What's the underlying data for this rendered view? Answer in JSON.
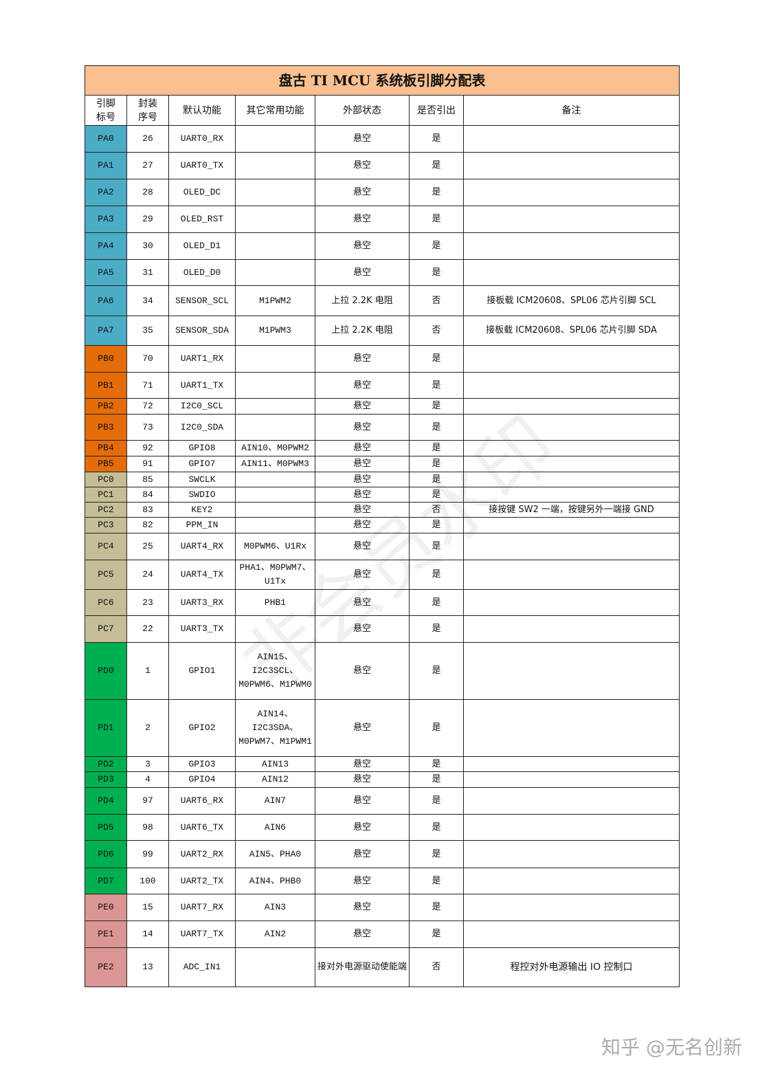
{
  "title": "盘古 TI MCU 系统板引脚分配表",
  "headers": [
    "引脚\n标号",
    "封装\n序号",
    "默认功能",
    "其它常用功能",
    "外部状态",
    "是否引出",
    "备注"
  ],
  "group_colors": {
    "PA": "#4bacc6",
    "PB": "#e46c0a",
    "PC": "#c4bd97",
    "PD": "#00b050",
    "PE": "#da9694"
  },
  "title_color": "#fac090",
  "rows": [
    {
      "pin": "PA0",
      "pkg": "26",
      "default": "UART0_RX",
      "other": "",
      "ext": "悬空",
      "out": "是",
      "note": ""
    },
    {
      "pin": "PA1",
      "pkg": "27",
      "default": "UART0_TX",
      "other": "",
      "ext": "悬空",
      "out": "是",
      "note": ""
    },
    {
      "pin": "PA2",
      "pkg": "28",
      "default": "OLED_DC",
      "other": "",
      "ext": "悬空",
      "out": "是",
      "note": ""
    },
    {
      "pin": "PA3",
      "pkg": "29",
      "default": "OLED_RST",
      "other": "",
      "ext": "悬空",
      "out": "是",
      "note": ""
    },
    {
      "pin": "PA4",
      "pkg": "30",
      "default": "OLED_D1",
      "other": "",
      "ext": "悬空",
      "out": "是",
      "note": ""
    },
    {
      "pin": "PA5",
      "pkg": "31",
      "default": "OLED_D0",
      "other": "",
      "ext": "悬空",
      "out": "是",
      "note": ""
    },
    {
      "pin": "PA6",
      "pkg": "34",
      "default": "SENSOR_SCL",
      "other": "M1PWM2",
      "ext": "上拉 2.2K 电阻",
      "out": "否",
      "note": "接板载 ICM20608、SPL06 芯片引脚 SCL"
    },
    {
      "pin": "PA7",
      "pkg": "35",
      "default": "SENSOR_SDA",
      "other": "M1PWM3",
      "ext": "上拉 2.2K 电阻",
      "out": "否",
      "note": "接板载 ICM20608、SPL06 芯片引脚 SDA"
    },
    {
      "pin": "PB0",
      "pkg": "70",
      "default": "UART1_RX",
      "other": "",
      "ext": "悬空",
      "out": "是",
      "note": ""
    },
    {
      "pin": "PB1",
      "pkg": "71",
      "default": "UART1_TX",
      "other": "",
      "ext": "悬空",
      "out": "是",
      "note": ""
    },
    {
      "pin": "PB2",
      "pkg": "72",
      "default": "I2C0_SCL",
      "other": "",
      "ext": "悬空",
      "out": "是",
      "note": ""
    },
    {
      "pin": "PB3",
      "pkg": "73",
      "default": "I2C0_SDA",
      "other": "",
      "ext": "悬空",
      "out": "是",
      "note": ""
    },
    {
      "pin": "PB4",
      "pkg": "92",
      "default": "GPIO8",
      "other": "AIN10、M0PWM2",
      "ext": "悬空",
      "out": "是",
      "note": ""
    },
    {
      "pin": "PB5",
      "pkg": "91",
      "default": "GPIO7",
      "other": "AIN11、M0PWM3",
      "ext": "悬空",
      "out": "是",
      "note": ""
    },
    {
      "pin": "PC0",
      "pkg": "85",
      "default": "SWCLK",
      "other": "",
      "ext": "悬空",
      "out": "是",
      "note": ""
    },
    {
      "pin": "PC1",
      "pkg": "84",
      "default": "SWDIO",
      "other": "",
      "ext": "悬空",
      "out": "是",
      "note": ""
    },
    {
      "pin": "PC2",
      "pkg": "83",
      "default": "KEY2",
      "other": "",
      "ext": "悬空",
      "out": "否",
      "note": "接按键 SW2 一端，按键另外一端接 GND"
    },
    {
      "pin": "PC3",
      "pkg": "82",
      "default": "PPM_IN",
      "other": "",
      "ext": "悬空",
      "out": "是",
      "note": ""
    },
    {
      "pin": "PC4",
      "pkg": "25",
      "default": "UART4_RX",
      "other": "M0PWM6、U1Rx",
      "ext": "悬空",
      "out": "是",
      "note": ""
    },
    {
      "pin": "PC5",
      "pkg": "24",
      "default": "UART4_TX",
      "other": "PHA1、M0PWM7、U1Tx",
      "ext": "悬空",
      "out": "是",
      "note": ""
    },
    {
      "pin": "PC6",
      "pkg": "23",
      "default": "UART3_RX",
      "other": "PHB1",
      "ext": "悬空",
      "out": "是",
      "note": ""
    },
    {
      "pin": "PC7",
      "pkg": "22",
      "default": "UART3_TX",
      "other": "",
      "ext": "悬空",
      "out": "是",
      "note": ""
    },
    {
      "pin": "PD0",
      "pkg": "1",
      "default": "GPIO1",
      "other": "AIN15、I2C3SCL、M0PWM6、M1PWM0",
      "ext": "悬空",
      "out": "是",
      "note": ""
    },
    {
      "pin": "PD1",
      "pkg": "2",
      "default": "GPIO2",
      "other": "AIN14、I2C3SDA、M0PWM7、M1PWM1",
      "ext": "悬空",
      "out": "是",
      "note": ""
    },
    {
      "pin": "PD2",
      "pkg": "3",
      "default": "GPIO3",
      "other": "AIN13",
      "ext": "悬空",
      "out": "是",
      "note": ""
    },
    {
      "pin": "PD3",
      "pkg": "4",
      "default": "GPIO4",
      "other": "AIN12",
      "ext": "悬空",
      "out": "是",
      "note": ""
    },
    {
      "pin": "PD4",
      "pkg": "97",
      "default": "UART6_RX",
      "other": "AIN7",
      "ext": "悬空",
      "out": "是",
      "note": ""
    },
    {
      "pin": "PD5",
      "pkg": "98",
      "default": "UART6_TX",
      "other": "AIN6",
      "ext": "悬空",
      "out": "是",
      "note": ""
    },
    {
      "pin": "PD6",
      "pkg": "99",
      "default": "UART2_RX",
      "other": "AIN5、PHA0",
      "ext": "悬空",
      "out": "是",
      "note": ""
    },
    {
      "pin": "PD7",
      "pkg": "100",
      "default": "UART2_TX",
      "other": "AIN4、PHB0",
      "ext": "悬空",
      "out": "是",
      "note": ""
    },
    {
      "pin": "PE0",
      "pkg": "15",
      "default": "UART7_RX",
      "other": "AIN3",
      "ext": "悬空",
      "out": "是",
      "note": ""
    },
    {
      "pin": "PE1",
      "pkg": "14",
      "default": "UART7_TX",
      "other": "AIN2",
      "ext": "悬空",
      "out": "是",
      "note": ""
    },
    {
      "pin": "PE2",
      "pkg": "13",
      "default": "ADC_IN1",
      "other": "",
      "ext": "接对外电源驱动使能端",
      "out": "否",
      "note": "程控对外电源输出 IO 控制口"
    }
  ],
  "watermark": "非会员水印",
  "footer_watermark": "知乎 @无名创新"
}
